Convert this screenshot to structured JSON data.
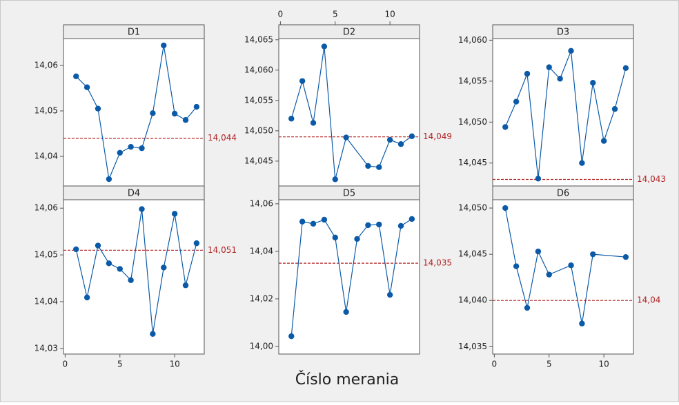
{
  "x_label": "Číslo merania",
  "chart_data": [
    {
      "type": "line",
      "title": "D1",
      "color": "#0b5aa8",
      "x": [
        1,
        2,
        3,
        4,
        5,
        6,
        7,
        8,
        9,
        10,
        11,
        12
      ],
      "values": [
        14.0576,
        14.0552,
        14.0505,
        14.035,
        14.0408,
        14.0421,
        14.0418,
        14.0495,
        14.0644,
        14.0494,
        14.048,
        14.0509
      ],
      "xlim": [
        -0.15,
        12.7
      ],
      "ylim": [
        14.0335,
        14.0659
      ],
      "yticks": [
        {
          "value": 14.04,
          "label": "14,04"
        },
        {
          "value": 14.05,
          "label": "14,05"
        },
        {
          "value": 14.06,
          "label": "14,06"
        }
      ],
      "reference_line": {
        "value": 14.044,
        "label": "14,044",
        "color": "#b22222"
      }
    },
    {
      "type": "line",
      "title": "D2",
      "color": "#0b5aa8",
      "x": [
        1,
        2,
        3,
        4,
        5,
        6,
        8,
        9,
        10,
        11,
        12
      ],
      "values": [
        14.052,
        14.0582,
        14.0513,
        14.0639,
        14.042,
        14.0489,
        14.0442,
        14.044,
        14.0485,
        14.0478,
        14.0491
      ],
      "xlim": [
        -0.15,
        12.7
      ],
      "ylim": [
        14.0409,
        14.0652
      ],
      "xticks": [
        0,
        5,
        10
      ],
      "xtick_position": "top",
      "yticks": [
        {
          "value": 14.045,
          "label": "14,045"
        },
        {
          "value": 14.05,
          "label": "14,050"
        },
        {
          "value": 14.055,
          "label": "14,055"
        },
        {
          "value": 14.06,
          "label": "14,060"
        },
        {
          "value": 14.065,
          "label": "14,065"
        }
      ],
      "reference_line": {
        "value": 14.049,
        "label": "14,049",
        "color": "#b22222"
      }
    },
    {
      "type": "line",
      "title": "D3",
      "color": "#0b5aa8",
      "x": [
        1,
        2,
        3,
        4,
        5,
        6,
        7,
        8,
        9,
        10,
        11,
        12
      ],
      "values": [
        14.0494,
        14.0525,
        14.0559,
        14.0431,
        14.0567,
        14.0553,
        14.0587,
        14.045,
        14.0548,
        14.0477,
        14.0516,
        14.0566
      ],
      "xlim": [
        -0.15,
        12.7
      ],
      "ylim": [
        14.0422,
        14.0602
      ],
      "yticks": [
        {
          "value": 14.045,
          "label": "14,045"
        },
        {
          "value": 14.05,
          "label": "14,050"
        },
        {
          "value": 14.055,
          "label": "14,055"
        },
        {
          "value": 14.06,
          "label": "14,060"
        }
      ],
      "reference_line": {
        "value": 14.043,
        "label": "14,043",
        "color": "#b22222"
      }
    },
    {
      "type": "line",
      "title": "D4",
      "color": "#0b5aa8",
      "x": [
        1,
        2,
        3,
        4,
        5,
        6,
        7,
        8,
        9,
        10,
        11,
        12
      ],
      "values": [
        14.0512,
        14.0409,
        14.052,
        14.0482,
        14.047,
        14.0446,
        14.0598,
        14.0331,
        14.0473,
        14.0588,
        14.0435,
        14.0525
      ],
      "xlim": [
        -0.15,
        12.7
      ],
      "ylim": [
        14.0288,
        14.0618
      ],
      "xticks": [
        0,
        5,
        10
      ],
      "xtick_position": "bottom",
      "yticks": [
        {
          "value": 14.03,
          "label": "14,03"
        },
        {
          "value": 14.04,
          "label": "14,04"
        },
        {
          "value": 14.05,
          "label": "14,05"
        },
        {
          "value": 14.06,
          "label": "14,06"
        }
      ],
      "reference_line": {
        "value": 14.051,
        "label": "14,051",
        "color": "#b22222"
      }
    },
    {
      "type": "line",
      "title": "D5",
      "color": "#0b5aa8",
      "x": [
        1,
        2,
        3,
        4,
        5,
        6,
        7,
        8,
        9,
        10,
        11,
        12
      ],
      "values": [
        14.0043,
        14.0525,
        14.0516,
        14.0533,
        14.0458,
        14.0145,
        14.0452,
        14.051,
        14.0513,
        14.0217,
        14.0507,
        14.0536
      ],
      "xlim": [
        -0.15,
        12.7
      ],
      "ylim": [
        13.9968,
        14.0617
      ],
      "yticks": [
        {
          "value": 14.0,
          "label": "14,00"
        },
        {
          "value": 14.02,
          "label": "14,02"
        },
        {
          "value": 14.04,
          "label": "14,04"
        },
        {
          "value": 14.06,
          "label": "14,06"
        }
      ],
      "reference_line": {
        "value": 14.035,
        "label": "14,035",
        "color": "#b22222"
      }
    },
    {
      "type": "line",
      "title": "D6",
      "color": "#0b5aa8",
      "x": [
        1,
        2,
        3,
        4,
        5,
        7,
        8,
        9,
        12
      ],
      "values": [
        14.05,
        14.0437,
        14.0392,
        14.0453,
        14.0428,
        14.0438,
        14.0375,
        14.045,
        14.0447
      ],
      "xlim": [
        -0.15,
        12.7
      ],
      "ylim": [
        14.0342,
        14.0509
      ],
      "xticks": [
        0,
        5,
        10
      ],
      "xtick_position": "bottom",
      "yticks": [
        {
          "value": 14.035,
          "label": "14,035"
        },
        {
          "value": 14.04,
          "label": "14,040"
        },
        {
          "value": 14.045,
          "label": "14,045"
        },
        {
          "value": 14.05,
          "label": "14,050"
        }
      ],
      "reference_line": {
        "value": 14.04,
        "label": "14,04",
        "color": "#b22222"
      }
    }
  ]
}
